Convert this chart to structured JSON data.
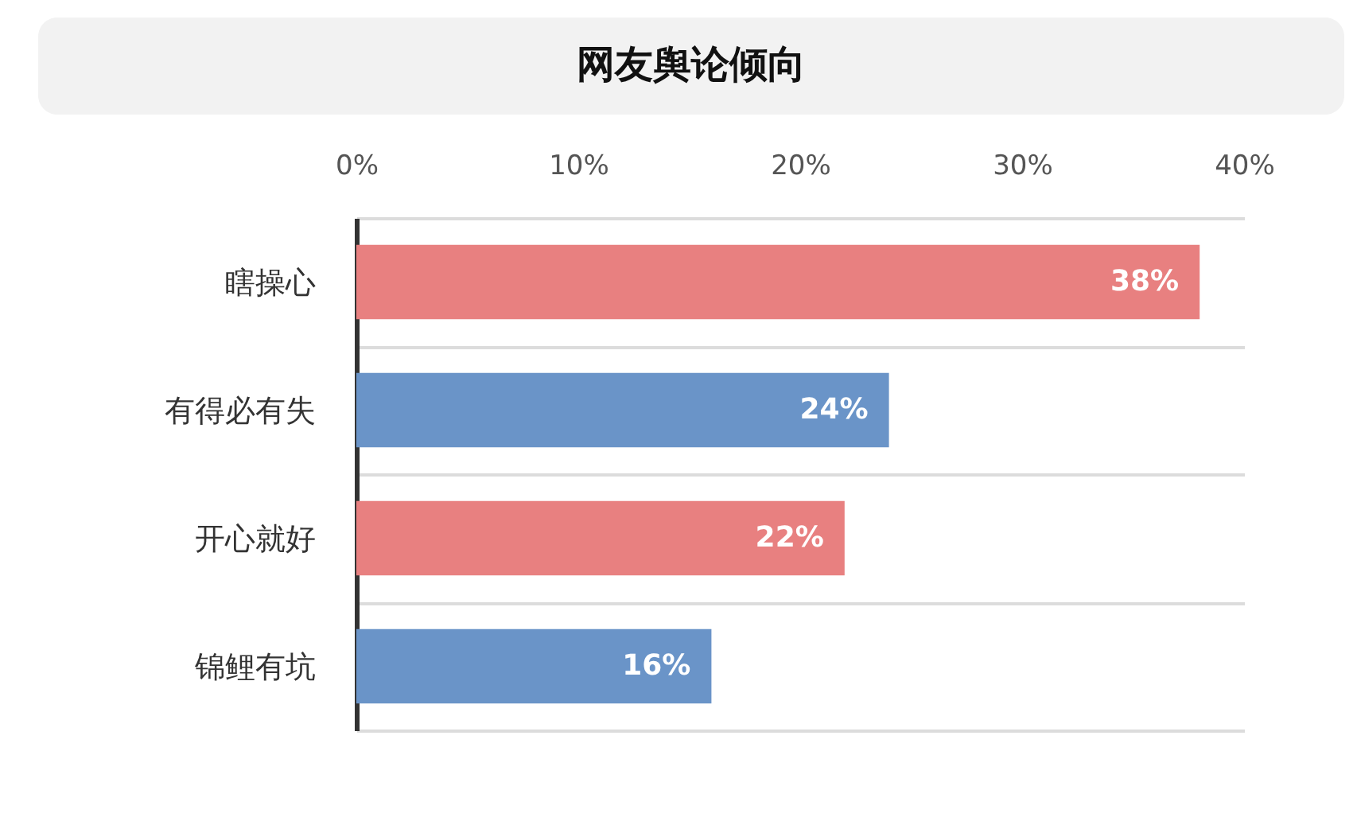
{
  "chart_data": {
    "type": "bar",
    "title": "网友舆论倾向",
    "orientation": "horizontal",
    "categories": [
      "瞎操心",
      "有得必有失",
      "开心就好",
      "锦鲤有坑"
    ],
    "values": [
      38,
      24,
      22,
      16
    ],
    "colors": [
      "#e88080",
      "#6a94c8",
      "#e88080",
      "#6a94c8"
    ],
    "value_labels": [
      "38%",
      "24%",
      "22%",
      "16%"
    ],
    "xlim": [
      0,
      40
    ],
    "xticks": [
      {
        "value": 0,
        "label": "0%"
      },
      {
        "value": 10,
        "label": "10%"
      },
      {
        "value": 20,
        "label": "20%"
      },
      {
        "value": 30,
        "label": "30%"
      },
      {
        "value": 40,
        "label": "40%"
      }
    ],
    "grid": "y"
  }
}
